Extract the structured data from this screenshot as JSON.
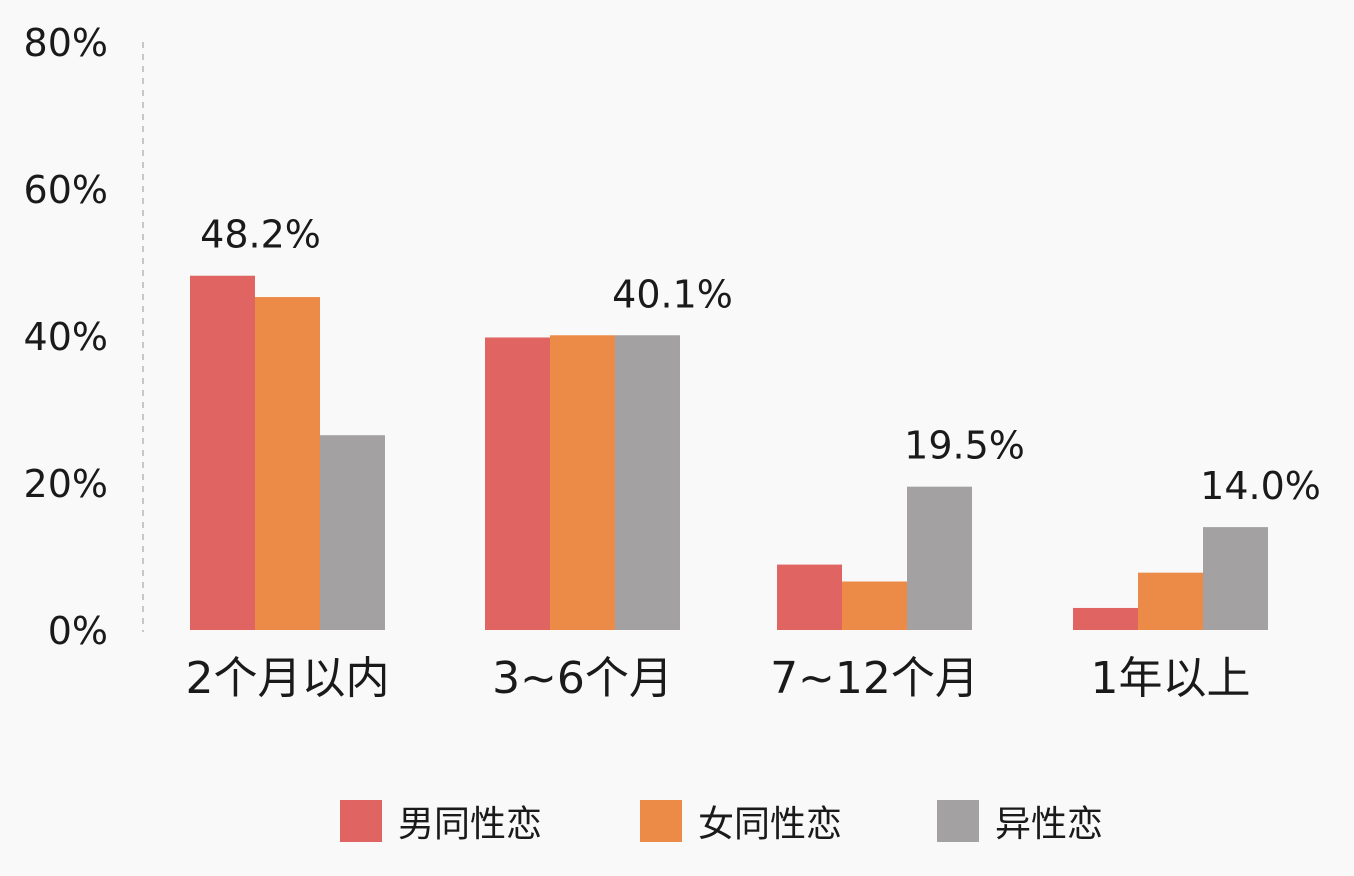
{
  "chart_data": {
    "type": "bar",
    "categories": [
      "2个月以内",
      "3~6个月",
      "7~12个月",
      "1年以上"
    ],
    "series": [
      {
        "name": "男同性恋",
        "color": "#e06461",
        "values": [
          48.2,
          39.8,
          8.9,
          3.0
        ]
      },
      {
        "name": "女同性恋",
        "color": "#ec8b48",
        "values": [
          45.3,
          40.1,
          6.6,
          7.8
        ]
      },
      {
        "name": "异性恋",
        "color": "#a3a1a2",
        "values": [
          26.5,
          40.1,
          19.5,
          14.0
        ]
      }
    ],
    "data_labels": [
      {
        "category": 0,
        "series": 0,
        "text": "48.2%"
      },
      {
        "category": 1,
        "series": 2,
        "text": "40.1%"
      },
      {
        "category": 2,
        "series": 2,
        "text": "19.5%"
      },
      {
        "category": 3,
        "series": 2,
        "text": "14.0%"
      }
    ],
    "y_ticks": [
      "0%",
      "20%",
      "40%",
      "60%",
      "80%"
    ],
    "y_tick_values": [
      0,
      20,
      40,
      60,
      80
    ],
    "ylim": [
      0,
      80
    ],
    "grid": false,
    "legend_position": "bottom"
  }
}
